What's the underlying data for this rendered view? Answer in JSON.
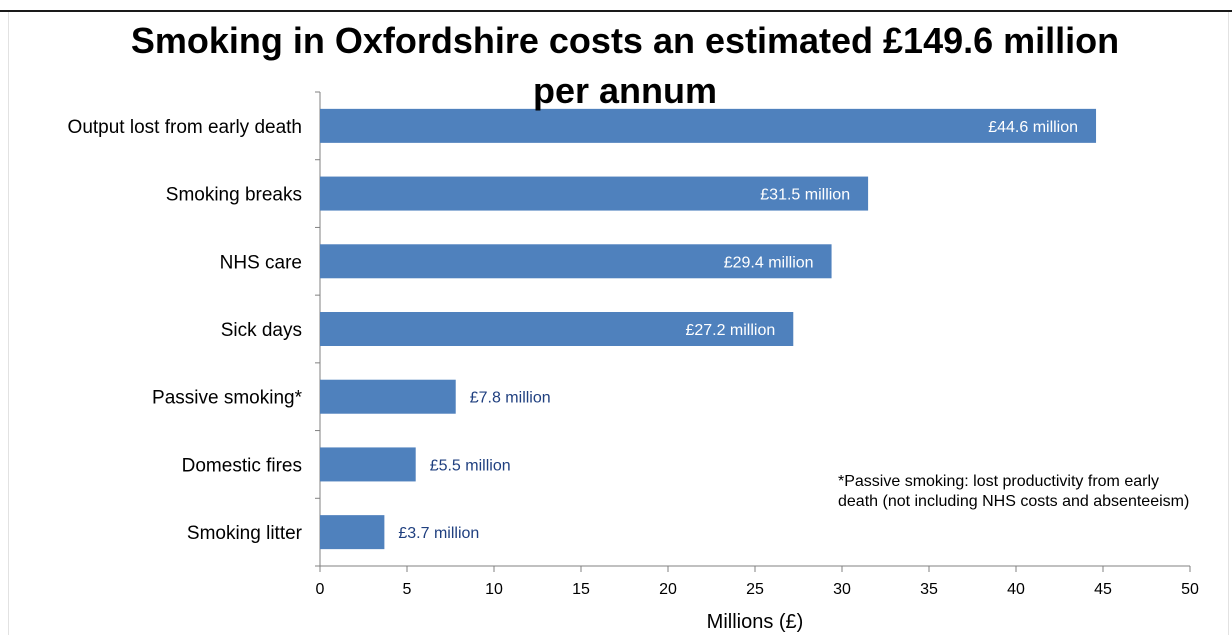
{
  "chart_data": {
    "type": "bar",
    "orientation": "horizontal",
    "title": "Smoking in  Oxfordshire costs an estimated  £149.6 million per annum",
    "categories": [
      "Output lost from early death",
      "Smoking breaks",
      "NHS care",
      "Sick days",
      "Passive smoking*",
      "Domestic fires",
      "Smoking litter"
    ],
    "values": [
      44.6,
      31.5,
      29.4,
      27.2,
      7.8,
      5.5,
      3.7
    ],
    "data_labels": [
      "£44.6 million",
      "£31.5 million",
      "£29.4 million",
      "£27.2 million",
      "£7.8 million",
      "£5.5 million",
      "£3.7 million"
    ],
    "xlabel": "Millions (£)",
    "ylabel": "",
    "xlim": [
      0,
      50
    ],
    "xticks": [
      "0",
      "5",
      "10",
      "15",
      "20",
      "25",
      "30",
      "35",
      "40",
      "45",
      "50"
    ],
    "grid": false,
    "legend": "none",
    "bar_color": "#4f81bd",
    "label_inside_color": "#ffffff",
    "label_outside_color": "#1f3f7f",
    "footnote": "*Passive smoking: lost productivity from early death (not including NHS costs and absenteeism)"
  }
}
